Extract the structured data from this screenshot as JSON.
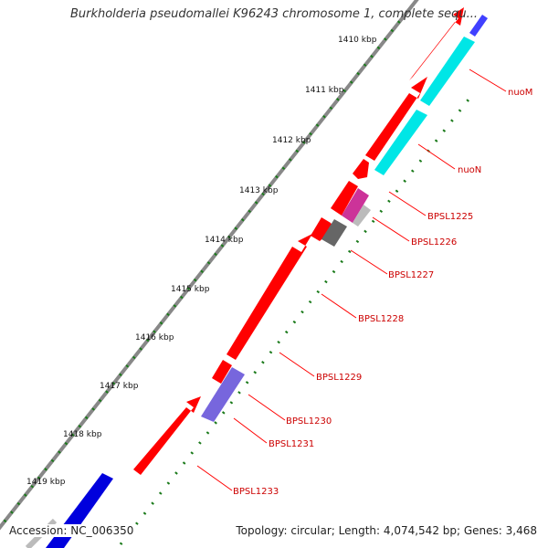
{
  "map": {
    "title": "Burkholderia pseudomallei K96243 chromosome 1, complete sequ...",
    "accession": "Accession: NC_006350",
    "summary": "Topology: circular; Length: 4,074,542 bp; Genes: 3,468"
  },
  "colors": {
    "forward_gene": "#ff0000",
    "reverse_gene": "#00ffff",
    "gene_label": "#cc0000",
    "backbone": "#888888",
    "tick": "#1a7a1a",
    "tick_label": "#111111"
  },
  "kbp_ticks": [
    {
      "label": "1410 kbp"
    },
    {
      "label": "1411 kbp"
    },
    {
      "label": "1412 kbp"
    },
    {
      "label": "1413 kbp"
    },
    {
      "label": "1414 kbp"
    },
    {
      "label": "1415 kbp"
    },
    {
      "label": "1416 kbp"
    },
    {
      "label": "1417 kbp"
    },
    {
      "label": "1418 kbp"
    },
    {
      "label": "1419 kbp"
    }
  ],
  "gene_labels": [
    {
      "label": "nuoM"
    },
    {
      "label": "nuoN"
    },
    {
      "label": "BPSL1225"
    },
    {
      "label": "BPSL1226"
    },
    {
      "label": "BPSL1227"
    },
    {
      "label": "BPSL1228"
    },
    {
      "label": "BPSL1229"
    },
    {
      "label": "BPSL1230"
    },
    {
      "label": "BPSL1231"
    },
    {
      "label": "BPSL1233"
    }
  ]
}
